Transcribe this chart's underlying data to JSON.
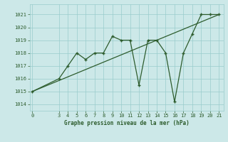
{
  "x_data": [
    0,
    3,
    4,
    5,
    6,
    7,
    8,
    9,
    10,
    11,
    12,
    13,
    14,
    15,
    16,
    17,
    18,
    19,
    20,
    21
  ],
  "y_data": [
    1015,
    1016,
    1017,
    1018,
    1017.5,
    1018,
    1018,
    1019.3,
    1019,
    1019,
    1015.5,
    1019,
    1019,
    1018,
    1014.2,
    1018,
    1019.5,
    1021,
    1021,
    1021
  ],
  "trend_x": [
    0,
    21
  ],
  "trend_y": [
    1015,
    1021
  ],
  "bg_color": "#cce8e8",
  "line_color": "#2d5c2d",
  "trend_color": "#2d5c2d",
  "grid_color": "#99cccc",
  "xlabel": "Graphe pression niveau de la mer (hPa)",
  "xlim": [
    -0.3,
    21.5
  ],
  "ylim": [
    1013.5,
    1021.8
  ],
  "yticks": [
    1014,
    1015,
    1016,
    1017,
    1018,
    1019,
    1020,
    1021
  ],
  "xticks": [
    0,
    3,
    4,
    5,
    6,
    7,
    8,
    9,
    10,
    11,
    12,
    13,
    14,
    15,
    16,
    17,
    18,
    19,
    20,
    21
  ]
}
